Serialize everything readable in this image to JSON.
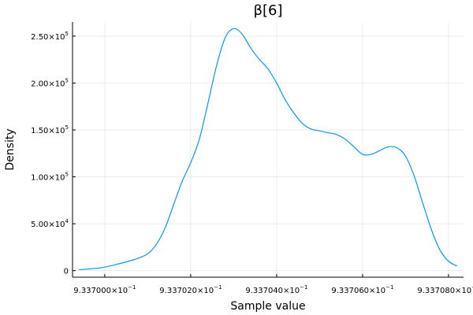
{
  "chart_data": {
    "type": "line",
    "title": "β[6]",
    "xlabel": "Sample value",
    "ylabel": "Density",
    "grid": true,
    "legend": "none",
    "colors": {
      "series": "#009AFA"
    },
    "x_ticks": [
      {
        "value": 0.9337,
        "label": "9.337000×10",
        "exp": "−1"
      },
      {
        "value": 0.933702,
        "label": "9.337020×10",
        "exp": "−1"
      },
      {
        "value": 0.933704,
        "label": "9.337040×10",
        "exp": "−1"
      },
      {
        "value": 0.933706,
        "label": "9.337060×10",
        "exp": "−1"
      },
      {
        "value": 0.933708,
        "label": "9.337080×10",
        "exp": "−1"
      }
    ],
    "y_ticks": [
      {
        "value": 0,
        "label": "0",
        "exp": ""
      },
      {
        "value": 50000,
        "label": "5.00×10",
        "exp": "4"
      },
      {
        "value": 100000,
        "label": "1.00×10",
        "exp": "5"
      },
      {
        "value": 150000,
        "label": "1.50×10",
        "exp": "5"
      },
      {
        "value": 200000,
        "label": "2.00×10",
        "exp": "5"
      },
      {
        "value": 250000,
        "label": "2.50×10",
        "exp": "5"
      }
    ],
    "xlim": [
      0.93369925,
      0.93370835
    ],
    "ylim": [
      -7000,
      265000
    ],
    "series": [
      {
        "x": [
          0.9336994,
          0.9336999,
          0.9337003,
          0.9337007,
          0.933701,
          0.9337012,
          0.9337014,
          0.9337016,
          0.9337018,
          0.933702,
          0.9337022,
          0.9337024,
          0.9337026,
          0.9337028,
          0.933703,
          0.9337032,
          0.9337034,
          0.9337036,
          0.9337038,
          0.933704,
          0.9337042,
          0.9337044,
          0.9337046,
          0.9337048,
          0.933705,
          0.9337052,
          0.9337054,
          0.9337056,
          0.9337058,
          0.933706,
          0.9337062,
          0.9337064,
          0.9337066,
          0.9337068,
          0.933707,
          0.9337072,
          0.9337074,
          0.9337076,
          0.9337078,
          0.933708,
          0.9337082
        ],
        "y": [
          1000,
          3000,
          7000,
          12000,
          18000,
          28000,
          45000,
          70000,
          95000,
          115000,
          140000,
          178000,
          218000,
          248000,
          258000,
          252000,
          237000,
          225000,
          215000,
          200000,
          182000,
          168000,
          157000,
          151000,
          149000,
          147000,
          145000,
          140000,
          132000,
          124000,
          124000,
          128000,
          132000,
          131000,
          122000,
          101000,
          72000,
          44000,
          22000,
          10000,
          5000
        ]
      }
    ]
  }
}
